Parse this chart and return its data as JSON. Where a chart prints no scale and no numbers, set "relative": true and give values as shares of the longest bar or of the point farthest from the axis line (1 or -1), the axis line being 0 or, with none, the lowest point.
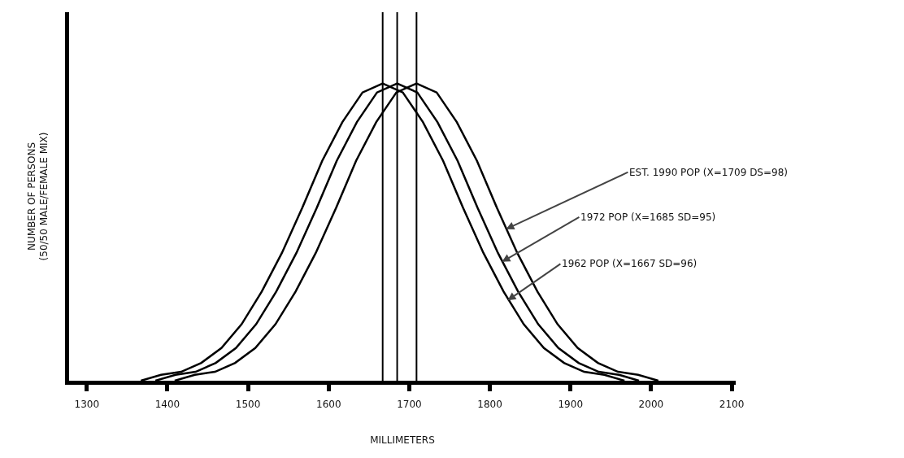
{
  "chart_data": {
    "type": "line",
    "relative": true,
    "xlabel": "MILLIMETERS",
    "ylabel": "NUMBER OF PERSONS\n(50/50 MALE/FEMALE MIX)",
    "xlim": [
      1278,
      2105
    ],
    "xticks": [
      1300,
      1400,
      1500,
      1600,
      1700,
      1800,
      1900,
      2000,
      2100
    ],
    "grid": false,
    "marker": "none",
    "line_style": "solid",
    "series": [
      {
        "color": "#000000",
        "x": [
          1367,
          1392,
          1417,
          1442,
          1467,
          1492,
          1517,
          1542,
          1567,
          1592,
          1617,
          1642,
          1667,
          1692,
          1717,
          1742,
          1767,
          1792,
          1817,
          1842,
          1867,
          1892,
          1917,
          1942,
          1967
        ],
        "values": [
          0,
          0.02,
          0.03,
          0.06,
          0.11,
          0.19,
          0.3,
          0.43,
          0.58,
          0.74,
          0.87,
          0.97,
          1,
          0.97,
          0.87,
          0.74,
          0.58,
          0.43,
          0.3,
          0.19,
          0.11,
          0.06,
          0.03,
          0.02,
          0
        ]
      },
      {
        "color": "#000000",
        "x": [
          1385,
          1410,
          1435,
          1460,
          1485,
          1510,
          1535,
          1560,
          1585,
          1610,
          1635,
          1660,
          1685,
          1710,
          1735,
          1760,
          1785,
          1810,
          1835,
          1860,
          1885,
          1910,
          1935,
          1960,
          1985
        ],
        "values": [
          0,
          0.02,
          0.03,
          0.06,
          0.11,
          0.19,
          0.3,
          0.43,
          0.58,
          0.74,
          0.87,
          0.97,
          1,
          0.97,
          0.87,
          0.74,
          0.58,
          0.43,
          0.3,
          0.19,
          0.11,
          0.06,
          0.03,
          0.02,
          0
        ]
      },
      {
        "color": "#000000",
        "x": [
          1409,
          1434,
          1459,
          1484,
          1509,
          1534,
          1559,
          1584,
          1609,
          1634,
          1659,
          1684,
          1709,
          1734,
          1759,
          1784,
          1809,
          1834,
          1859,
          1884,
          1909,
          1934,
          1959,
          1984,
          2009
        ],
        "values": [
          0,
          0.02,
          0.03,
          0.06,
          0.11,
          0.19,
          0.3,
          0.43,
          0.58,
          0.74,
          0.87,
          0.97,
          1,
          0.97,
          0.87,
          0.74,
          0.58,
          0.43,
          0.3,
          0.19,
          0.11,
          0.06,
          0.03,
          0.02,
          0
        ]
      }
    ],
    "ref_lines": [
      {
        "axis": "x",
        "value": 1667,
        "color": "#000000"
      },
      {
        "axis": "x",
        "value": 1685,
        "color": "#000000"
      },
      {
        "axis": "x",
        "value": 1709,
        "color": "#000000"
      }
    ],
    "annotations": [
      {
        "text": "EST. 1990 POP (X=1709 DS=98)",
        "x": 1820,
        "y": 0.51
      },
      {
        "text": "1972 POP (X=1685 SD=95)",
        "x": 1815,
        "y": 0.4
      },
      {
        "text": "1962 POP (X=1667 SD=96)",
        "x": 1822,
        "y": 0.27
      }
    ]
  }
}
